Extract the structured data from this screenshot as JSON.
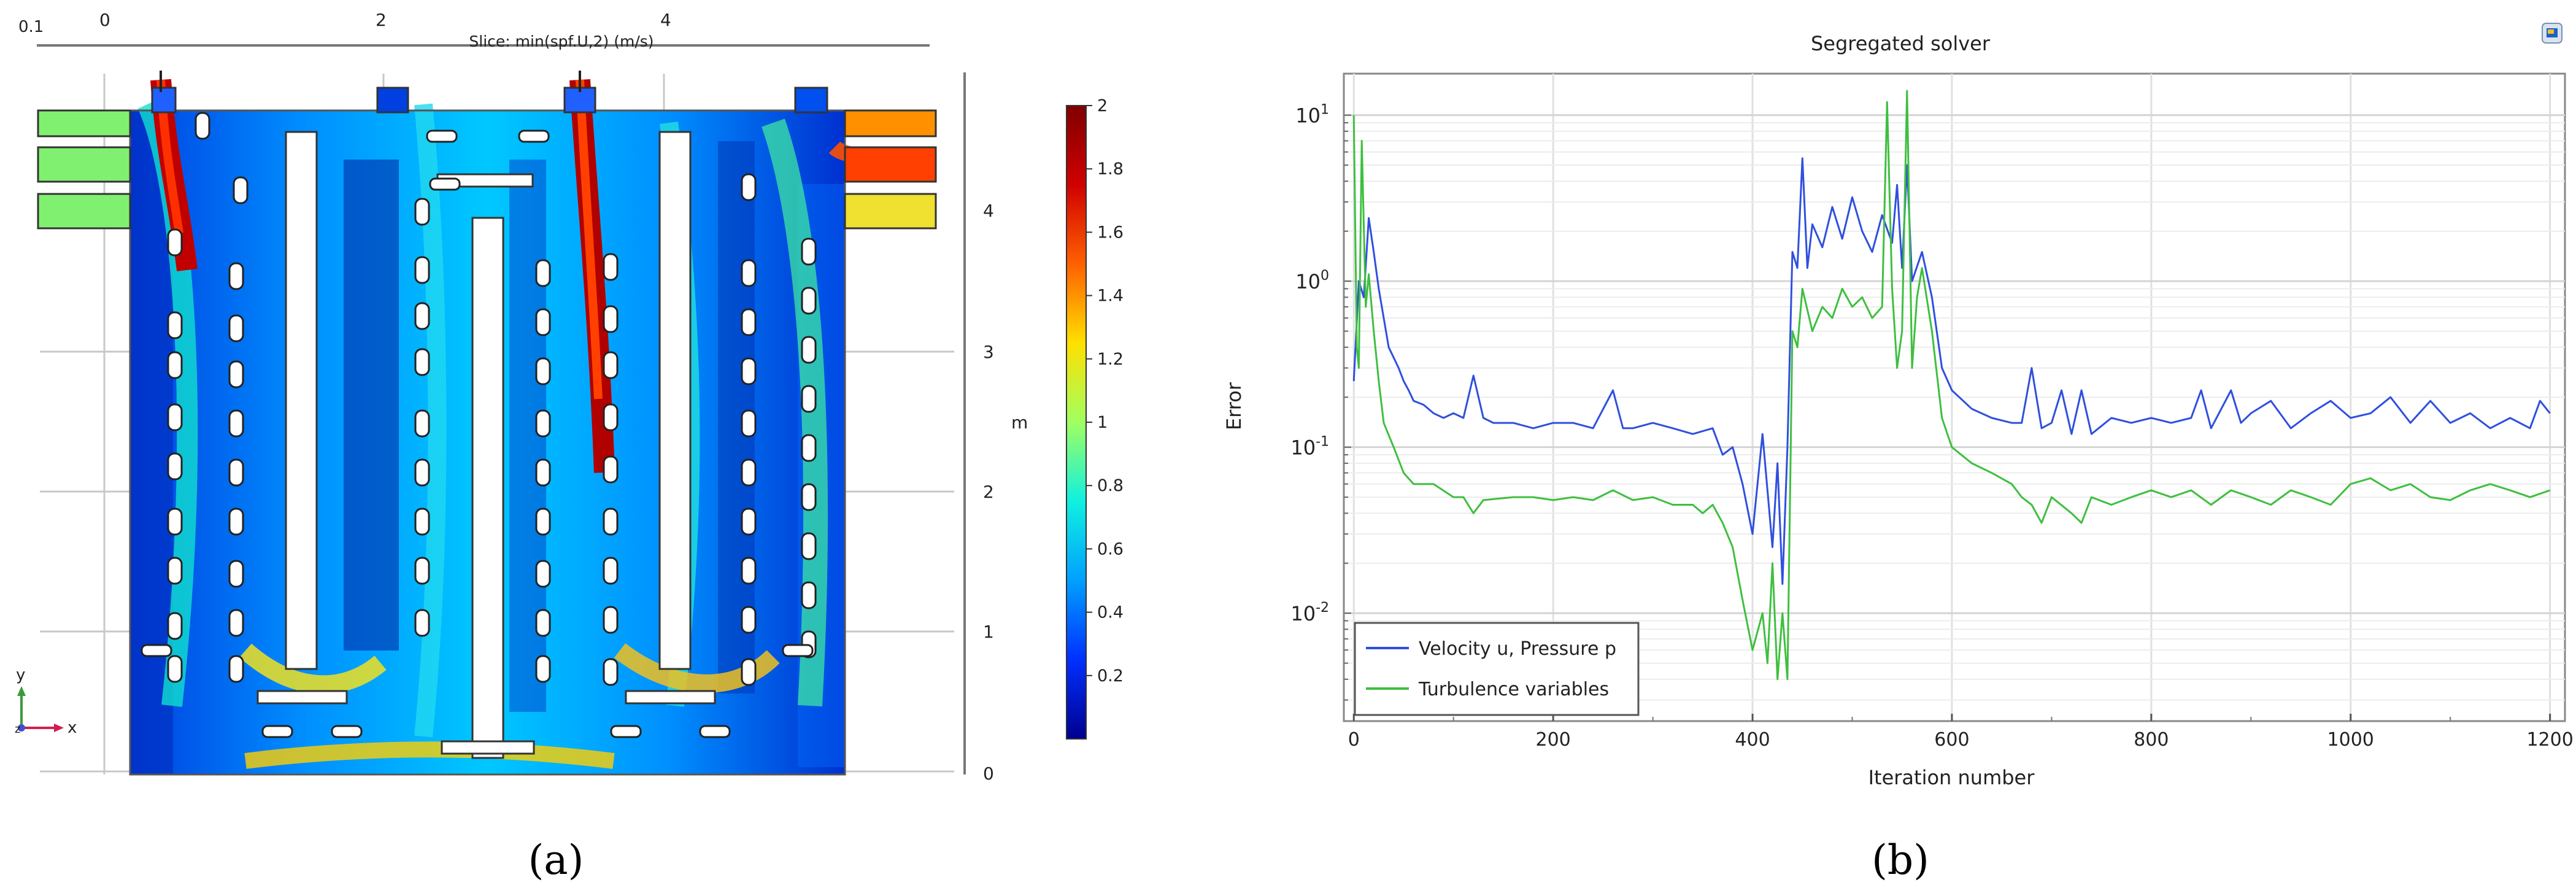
{
  "figure": {
    "caption_a": "(a)",
    "caption_b": "(b)"
  },
  "panel_a": {
    "slice_title": "Slice: min(spf.U,2) (m/s)",
    "corner_label": "0.1",
    "x_ticks": [
      "0",
      "2",
      "4"
    ],
    "y_unit": "m",
    "y_ticks": [
      "0",
      "1",
      "2",
      "3",
      "4"
    ],
    "axis_y": "y",
    "axis_x": "x",
    "axis_z": "z",
    "colorbar": {
      "min": 0,
      "max": 2,
      "tick_labels": [
        "2",
        "1.8",
        "1.6",
        "1.4",
        "1.2",
        "1",
        "0.8",
        "0.6",
        "0.4",
        "0.2"
      ],
      "colors": [
        "#00008f",
        "#0030ff",
        "#00a0ff",
        "#10f0e0",
        "#a0ff60",
        "#ffe000",
        "#ff6000",
        "#d00000",
        "#800000"
      ]
    }
  },
  "chart_data": {
    "type": "line",
    "title": "Segregated solver",
    "xlabel": "Iteration number",
    "ylabel": "Error",
    "xlim": [
      -10,
      1215
    ],
    "ylim_log10": [
      -2.65,
      1.25
    ],
    "x_ticks": [
      0,
      200,
      400,
      600,
      800,
      1000,
      1200
    ],
    "y_tick_labels": [
      {
        "base": "10",
        "exp": "1",
        "value": 10
      },
      {
        "base": "10",
        "exp": "0",
        "value": 1
      },
      {
        "base": "10",
        "exp": "-1",
        "value": 0.1
      },
      {
        "base": "10",
        "exp": "-2",
        "value": 0.01
      }
    ],
    "grid": true,
    "legend_position": "bottom-left",
    "series": [
      {
        "name": "Velocity u, Pressure p",
        "color": "#2f4fdf",
        "points": [
          [
            0,
            0.25
          ],
          [
            5,
            1.0
          ],
          [
            10,
            0.8
          ],
          [
            15,
            2.4
          ],
          [
            20,
            1.5
          ],
          [
            25,
            0.9
          ],
          [
            30,
            0.6
          ],
          [
            35,
            0.4
          ],
          [
            45,
            0.3
          ],
          [
            50,
            0.25
          ],
          [
            55,
            0.22
          ],
          [
            60,
            0.19
          ],
          [
            70,
            0.18
          ],
          [
            80,
            0.16
          ],
          [
            90,
            0.15
          ],
          [
            100,
            0.16
          ],
          [
            110,
            0.15
          ],
          [
            120,
            0.27
          ],
          [
            130,
            0.15
          ],
          [
            140,
            0.14
          ],
          [
            160,
            0.14
          ],
          [
            180,
            0.13
          ],
          [
            200,
            0.14
          ],
          [
            220,
            0.14
          ],
          [
            240,
            0.13
          ],
          [
            260,
            0.22
          ],
          [
            270,
            0.13
          ],
          [
            280,
            0.13
          ],
          [
            300,
            0.14
          ],
          [
            320,
            0.13
          ],
          [
            340,
            0.12
          ],
          [
            360,
            0.13
          ],
          [
            370,
            0.09
          ],
          [
            380,
            0.1
          ],
          [
            390,
            0.06
          ],
          [
            400,
            0.03
          ],
          [
            410,
            0.12
          ],
          [
            420,
            0.025
          ],
          [
            425,
            0.08
          ],
          [
            430,
            0.015
          ],
          [
            435,
            0.1
          ],
          [
            440,
            1.5
          ],
          [
            445,
            1.2
          ],
          [
            450,
            5.5
          ],
          [
            455,
            1.2
          ],
          [
            460,
            2.2
          ],
          [
            470,
            1.6
          ],
          [
            480,
            2.8
          ],
          [
            490,
            1.8
          ],
          [
            500,
            3.2
          ],
          [
            510,
            2.0
          ],
          [
            520,
            1.5
          ],
          [
            530,
            2.5
          ],
          [
            540,
            1.7
          ],
          [
            545,
            3.8
          ],
          [
            550,
            1.2
          ],
          [
            555,
            5.0
          ],
          [
            560,
            1.0
          ],
          [
            570,
            1.5
          ],
          [
            580,
            0.8
          ],
          [
            590,
            0.3
          ],
          [
            600,
            0.22
          ],
          [
            620,
            0.17
          ],
          [
            640,
            0.15
          ],
          [
            660,
            0.14
          ],
          [
            670,
            0.14
          ],
          [
            680,
            0.3
          ],
          [
            690,
            0.13
          ],
          [
            700,
            0.14
          ],
          [
            710,
            0.22
          ],
          [
            720,
            0.12
          ],
          [
            730,
            0.22
          ],
          [
            740,
            0.12
          ],
          [
            760,
            0.15
          ],
          [
            780,
            0.14
          ],
          [
            800,
            0.15
          ],
          [
            820,
            0.14
          ],
          [
            840,
            0.15
          ],
          [
            850,
            0.22
          ],
          [
            860,
            0.13
          ],
          [
            880,
            0.22
          ],
          [
            890,
            0.14
          ],
          [
            900,
            0.16
          ],
          [
            920,
            0.19
          ],
          [
            940,
            0.13
          ],
          [
            960,
            0.16
          ],
          [
            980,
            0.19
          ],
          [
            1000,
            0.15
          ],
          [
            1020,
            0.16
          ],
          [
            1040,
            0.2
          ],
          [
            1060,
            0.14
          ],
          [
            1080,
            0.19
          ],
          [
            1100,
            0.14
          ],
          [
            1120,
            0.16
          ],
          [
            1140,
            0.13
          ],
          [
            1160,
            0.15
          ],
          [
            1180,
            0.13
          ],
          [
            1190,
            0.19
          ],
          [
            1200,
            0.16
          ]
        ]
      },
      {
        "name": "Turbulence variables",
        "color": "#3fbf3f",
        "points": [
          [
            0,
            10.0
          ],
          [
            3,
            0.4
          ],
          [
            5,
            0.3
          ],
          [
            8,
            7.0
          ],
          [
            12,
            0.7
          ],
          [
            15,
            1.1
          ],
          [
            20,
            0.5
          ],
          [
            25,
            0.25
          ],
          [
            30,
            0.14
          ],
          [
            40,
            0.1
          ],
          [
            50,
            0.07
          ],
          [
            60,
            0.06
          ],
          [
            80,
            0.06
          ],
          [
            100,
            0.05
          ],
          [
            110,
            0.05
          ],
          [
            120,
            0.04
          ],
          [
            130,
            0.048
          ],
          [
            160,
            0.05
          ],
          [
            180,
            0.05
          ],
          [
            200,
            0.048
          ],
          [
            220,
            0.05
          ],
          [
            240,
            0.048
          ],
          [
            260,
            0.055
          ],
          [
            280,
            0.048
          ],
          [
            300,
            0.05
          ],
          [
            320,
            0.045
          ],
          [
            340,
            0.045
          ],
          [
            350,
            0.04
          ],
          [
            360,
            0.045
          ],
          [
            370,
            0.035
          ],
          [
            380,
            0.025
          ],
          [
            390,
            0.012
          ],
          [
            400,
            0.006
          ],
          [
            410,
            0.01
          ],
          [
            415,
            0.005
          ],
          [
            420,
            0.02
          ],
          [
            425,
            0.004
          ],
          [
            430,
            0.01
          ],
          [
            435,
            0.004
          ],
          [
            440,
            0.5
          ],
          [
            445,
            0.4
          ],
          [
            450,
            0.9
          ],
          [
            460,
            0.5
          ],
          [
            470,
            0.7
          ],
          [
            480,
            0.6
          ],
          [
            490,
            0.9
          ],
          [
            500,
            0.7
          ],
          [
            510,
            0.8
          ],
          [
            520,
            0.6
          ],
          [
            530,
            0.7
          ],
          [
            535,
            12.0
          ],
          [
            540,
            0.9
          ],
          [
            545,
            0.3
          ],
          [
            550,
            0.5
          ],
          [
            555,
            14.0
          ],
          [
            560,
            0.3
          ],
          [
            565,
            0.8
          ],
          [
            570,
            1.2
          ],
          [
            580,
            0.5
          ],
          [
            590,
            0.15
          ],
          [
            600,
            0.1
          ],
          [
            620,
            0.08
          ],
          [
            640,
            0.07
          ],
          [
            660,
            0.06
          ],
          [
            670,
            0.05
          ],
          [
            680,
            0.045
          ],
          [
            690,
            0.035
          ],
          [
            700,
            0.05
          ],
          [
            720,
            0.04
          ],
          [
            730,
            0.035
          ],
          [
            740,
            0.05
          ],
          [
            760,
            0.045
          ],
          [
            780,
            0.05
          ],
          [
            800,
            0.055
          ],
          [
            820,
            0.05
          ],
          [
            840,
            0.055
          ],
          [
            860,
            0.045
          ],
          [
            880,
            0.055
          ],
          [
            900,
            0.05
          ],
          [
            920,
            0.045
          ],
          [
            940,
            0.055
          ],
          [
            960,
            0.05
          ],
          [
            980,
            0.045
          ],
          [
            1000,
            0.06
          ],
          [
            1020,
            0.065
          ],
          [
            1040,
            0.055
          ],
          [
            1060,
            0.06
          ],
          [
            1080,
            0.05
          ],
          [
            1100,
            0.048
          ],
          [
            1120,
            0.055
          ],
          [
            1140,
            0.06
          ],
          [
            1160,
            0.055
          ],
          [
            1180,
            0.05
          ],
          [
            1200,
            0.055
          ]
        ]
      }
    ]
  }
}
